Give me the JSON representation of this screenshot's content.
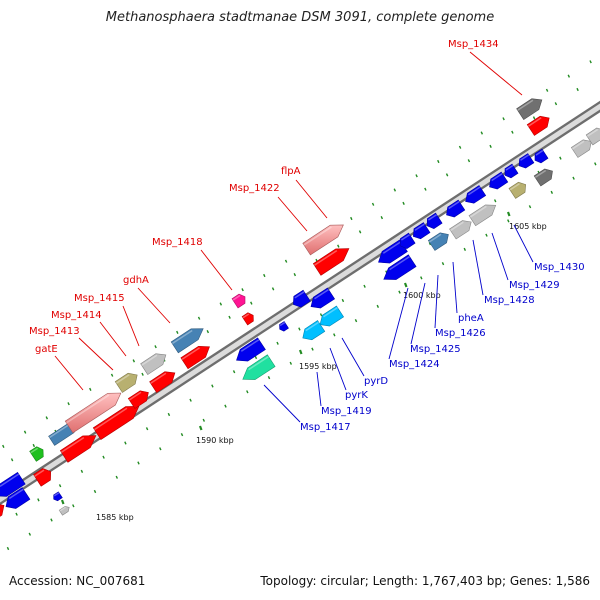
{
  "title": "Methanosphaera stadtmanae DSM 3091, complete genome",
  "footer": {
    "accession": "Accession: NC_007681",
    "summary": "Topology: circular; Length: 1,767,403 bp; Genes: 1,586"
  },
  "positions": [
    "1585 kbp",
    "1590 kbp",
    "1595 kbp",
    "1600 kbp",
    "1605 kbp"
  ],
  "labels_top": [
    "Msp_1434",
    "flpA",
    "Msp_1422",
    "Msp_1418",
    "gdhA",
    "Msp_1415",
    "Msp_1414",
    "Msp_1413",
    "gatE"
  ],
  "labels_bottom": [
    "Msp_1430",
    "Msp_1429",
    "Msp_1428",
    "pheA",
    "Msp_1426",
    "Msp_1425",
    "Msp_1424",
    "pyrD",
    "pyrK",
    "Msp_1419",
    "Msp_1417"
  ],
  "colors": {
    "forward_cds": "#ff0000",
    "forward_pair": "#f08080",
    "reverse_cds": "#0000ee",
    "steel": "#4682b4",
    "grey": "#c0c0c0",
    "dark_grey": "#707070",
    "olive": "#b8b070",
    "cyan": "#00bfff",
    "aqua": "#20e0a0",
    "magenta": "#ff1493",
    "green": "#20c020",
    "backbone": "#808080",
    "tick": "#228b22"
  }
}
